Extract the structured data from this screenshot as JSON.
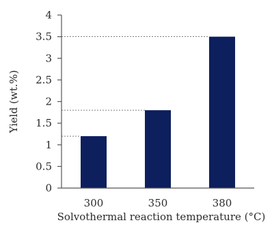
{
  "chart_data": {
    "type": "bar",
    "categories": [
      "300",
      "350",
      "380"
    ],
    "values": [
      1.2,
      1.8,
      3.5
    ],
    "xlabel": "Solvothermal reaction temperature (°C)",
    "ylabel": "Yield (wt.%)",
    "ylim": [
      0,
      4
    ],
    "yticks": [
      "0",
      "0.5",
      "1",
      "1.5",
      "2",
      "2.5",
      "3",
      "3.5",
      "4"
    ],
    "grid": false,
    "legend": "none",
    "reference_lines": "dashed lines from y-axis to top of each bar",
    "bar_color": "#0d1f5c",
    "axis_color": "#555555"
  }
}
